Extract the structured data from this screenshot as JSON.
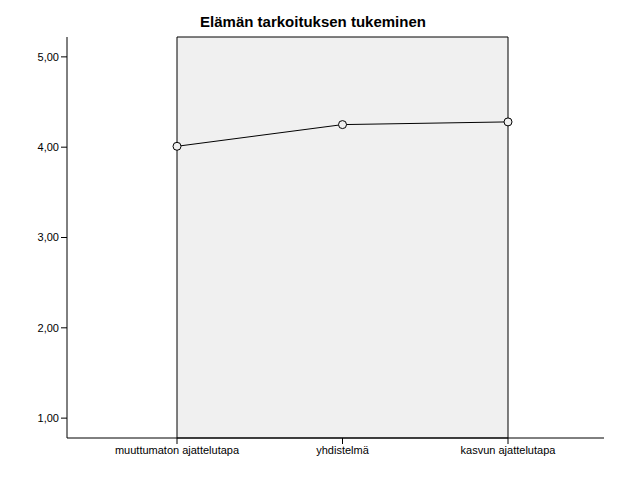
{
  "chart_data": {
    "type": "line",
    "title": "Elämän tarkoituksen tukeminen",
    "categories": [
      "muuttumaton ajattelutapa",
      "yhdistelmä",
      "kasvun ajattelutapa"
    ],
    "values": [
      4.01,
      4.25,
      4.28
    ],
    "color": "#000000",
    "marker": "circle",
    "ylim": [
      0.78,
      5.22
    ],
    "yticks": [
      {
        "value": 1,
        "label": "1,00"
      },
      {
        "value": 2,
        "label": "2,00"
      },
      {
        "value": 3,
        "label": "3,00"
      },
      {
        "value": 4,
        "label": "4,00"
      },
      {
        "value": 5,
        "label": "5,00"
      }
    ],
    "grid": false
  }
}
